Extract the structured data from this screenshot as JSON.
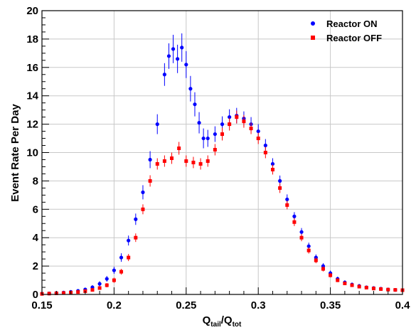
{
  "chart_data": {
    "type": "scatter",
    "ylabel": "Event Rate Per Day",
    "xlabel": {
      "main_1": "Q",
      "sub_1": "tail",
      "slash": "/Q",
      "sub_2": "tot"
    },
    "xlim": [
      0.15,
      0.4
    ],
    "ylim": [
      0,
      20
    ],
    "x_ticks": [
      {
        "value": 0.15,
        "label": "0.15"
      },
      {
        "value": 0.2,
        "label": "0.2"
      },
      {
        "value": 0.25,
        "label": "0.25"
      },
      {
        "value": 0.3,
        "label": "0.3"
      },
      {
        "value": 0.35,
        "label": "0.35"
      },
      {
        "value": 0.4,
        "label": "0.4"
      }
    ],
    "y_ticks": [
      {
        "value": 0,
        "label": "0"
      },
      {
        "value": 2,
        "label": "2"
      },
      {
        "value": 4,
        "label": "4"
      },
      {
        "value": 6,
        "label": "6"
      },
      {
        "value": 8,
        "label": "8"
      },
      {
        "value": 10,
        "label": "10"
      },
      {
        "value": 12,
        "label": "12"
      },
      {
        "value": 14,
        "label": "14"
      },
      {
        "value": 16,
        "label": "16"
      },
      {
        "value": 18,
        "label": "18"
      },
      {
        "value": 20,
        "label": "20"
      }
    ],
    "grid": true,
    "legend_position": "top-right",
    "series": [
      {
        "name": "Reactor ON",
        "color": "#0000ff",
        "marker": "circle",
        "x": [
          0.15,
          0.155,
          0.16,
          0.165,
          0.17,
          0.175,
          0.18,
          0.185,
          0.19,
          0.195,
          0.2,
          0.205,
          0.21,
          0.215,
          0.22,
          0.225,
          0.23,
          0.235,
          0.238,
          0.241,
          0.244,
          0.247,
          0.25,
          0.253,
          0.256,
          0.259,
          0.262,
          0.265,
          0.27,
          0.275,
          0.28,
          0.285,
          0.29,
          0.295,
          0.3,
          0.305,
          0.31,
          0.315,
          0.32,
          0.325,
          0.33,
          0.335,
          0.34,
          0.345,
          0.35,
          0.355,
          0.36,
          0.365,
          0.37,
          0.375,
          0.38,
          0.385,
          0.39,
          0.395,
          0.4
        ],
        "y": [
          0.05,
          0.07,
          0.1,
          0.13,
          0.18,
          0.25,
          0.35,
          0.5,
          0.75,
          1.1,
          1.7,
          2.6,
          3.8,
          5.3,
          7.2,
          9.5,
          12.0,
          15.5,
          16.8,
          17.3,
          16.6,
          17.4,
          16.2,
          14.5,
          13.4,
          12.1,
          11.0,
          11.0,
          11.3,
          12.0,
          12.5,
          12.6,
          12.4,
          12.0,
          11.5,
          10.5,
          9.2,
          8.0,
          6.7,
          5.5,
          4.4,
          3.4,
          2.6,
          2.0,
          1.5,
          1.1,
          0.85,
          0.7,
          0.6,
          0.5,
          0.45,
          0.4,
          0.35,
          0.32,
          0.3
        ],
        "err": [
          0.05,
          0.05,
          0.06,
          0.07,
          0.08,
          0.1,
          0.12,
          0.15,
          0.18,
          0.2,
          0.25,
          0.3,
          0.35,
          0.4,
          0.5,
          0.6,
          0.7,
          0.8,
          0.9,
          1.0,
          1.0,
          1.0,
          0.95,
          0.9,
          0.85,
          0.75,
          0.7,
          0.6,
          0.55,
          0.55,
          0.55,
          0.55,
          0.5,
          0.5,
          0.5,
          0.45,
          0.4,
          0.38,
          0.35,
          0.3,
          0.28,
          0.25,
          0.22,
          0.2,
          0.18,
          0.15,
          0.14,
          0.13,
          0.12,
          0.11,
          0.1,
          0.1,
          0.1,
          0.1,
          0.1
        ]
      },
      {
        "name": "Reactor OFF",
        "color": "#ff0000",
        "marker": "square",
        "x": [
          0.15,
          0.155,
          0.16,
          0.165,
          0.17,
          0.175,
          0.18,
          0.185,
          0.19,
          0.195,
          0.2,
          0.205,
          0.21,
          0.215,
          0.22,
          0.225,
          0.23,
          0.235,
          0.24,
          0.245,
          0.25,
          0.255,
          0.26,
          0.265,
          0.27,
          0.275,
          0.28,
          0.285,
          0.29,
          0.295,
          0.3,
          0.305,
          0.31,
          0.315,
          0.32,
          0.325,
          0.33,
          0.335,
          0.34,
          0.345,
          0.35,
          0.355,
          0.36,
          0.365,
          0.37,
          0.375,
          0.38,
          0.385,
          0.39,
          0.395,
          0.4
        ],
        "y": [
          0.04,
          0.06,
          0.08,
          0.1,
          0.13,
          0.17,
          0.23,
          0.32,
          0.45,
          0.65,
          1.0,
          1.6,
          2.6,
          4.0,
          6.0,
          8.0,
          9.2,
          9.4,
          9.6,
          10.3,
          9.4,
          9.3,
          9.2,
          9.4,
          10.2,
          11.3,
          12.0,
          12.5,
          12.2,
          11.7,
          11.0,
          10.0,
          8.8,
          7.5,
          6.3,
          5.1,
          4.0,
          3.1,
          2.4,
          1.8,
          1.35,
          1.0,
          0.78,
          0.65,
          0.55,
          0.48,
          0.42,
          0.38,
          0.34,
          0.32,
          0.3
        ],
        "err": [
          0.04,
          0.04,
          0.05,
          0.05,
          0.06,
          0.07,
          0.08,
          0.1,
          0.12,
          0.15,
          0.18,
          0.2,
          0.25,
          0.3,
          0.35,
          0.4,
          0.4,
          0.4,
          0.4,
          0.45,
          0.4,
          0.4,
          0.4,
          0.4,
          0.4,
          0.45,
          0.45,
          0.45,
          0.45,
          0.4,
          0.4,
          0.4,
          0.35,
          0.35,
          0.3,
          0.28,
          0.25,
          0.22,
          0.2,
          0.18,
          0.15,
          0.13,
          0.12,
          0.11,
          0.1,
          0.1,
          0.09,
          0.09,
          0.08,
          0.08,
          0.08
        ]
      }
    ]
  }
}
